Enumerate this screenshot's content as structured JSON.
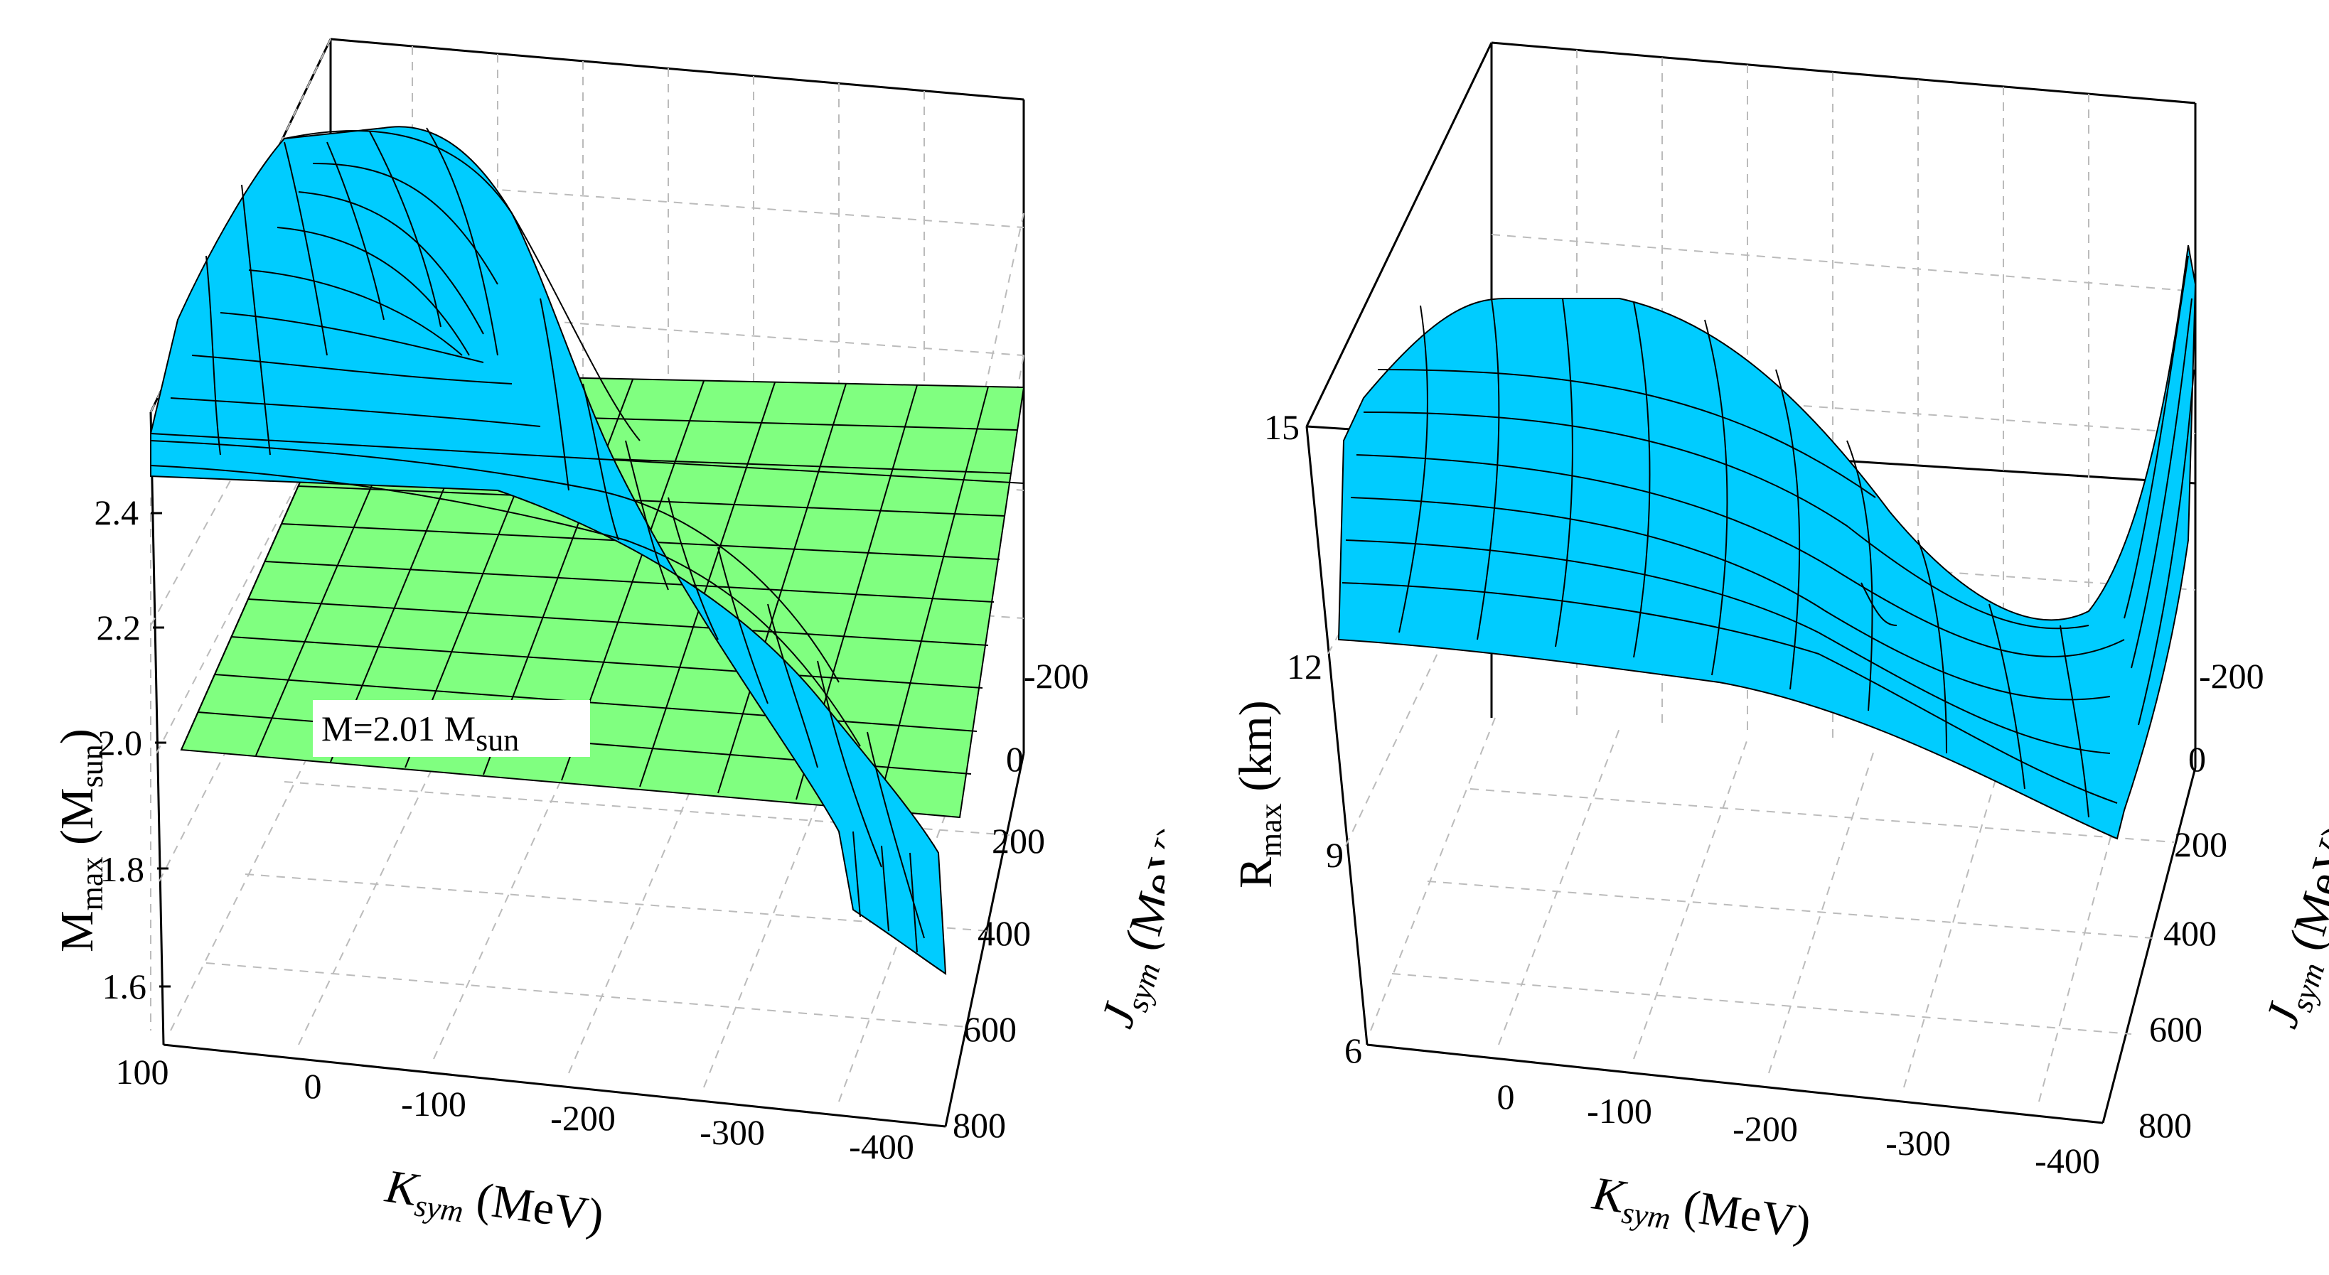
{
  "chart_data": [
    {
      "type": "surface",
      "title": "",
      "zlabel": {
        "main": "M",
        "sub": "max",
        "unit_open": " (M",
        "unit_sub": "sun",
        "unit_close": ")"
      },
      "xlabel": {
        "main": "K",
        "sub": "sym",
        "rest": " (MeV)"
      },
      "ylabel": {
        "main": "J",
        "sub": "sym",
        "rest": " (MeV)"
      },
      "z_ticks": [
        "2.4",
        "2.2",
        "2.0",
        "1.8",
        "1.6"
      ],
      "x_ticks": [
        "100",
        "0",
        "-100",
        "-200",
        "-300",
        "-400"
      ],
      "y_ticks": [
        "-200",
        "0",
        "200",
        "400",
        "600",
        "800"
      ],
      "xlim": [
        100,
        -400
      ],
      "ylim": [
        -200,
        800
      ],
      "zlim": [
        1.5,
        2.5
      ],
      "plane": {
        "value": 2.01,
        "color": "#80ff80",
        "label": {
          "main": "M=2.01 M",
          "sub": "sun"
        }
      },
      "surface_color": "#00ccff",
      "grid": true
    },
    {
      "type": "surface",
      "title": "",
      "zlabel": {
        "main": "R",
        "sub": "max",
        "rest": " (km)"
      },
      "xlabel": {
        "main": "K",
        "sub": "sym",
        "rest": " (MeV)"
      },
      "ylabel": {
        "main": "J",
        "sub": "sym",
        "rest": " (MeV)"
      },
      "z_ticks": [
        "15",
        "12",
        "9",
        "6"
      ],
      "x_ticks": [
        "0",
        "-100",
        "-200",
        "-300",
        "-400"
      ],
      "y_ticks": [
        "-200",
        "0",
        "200",
        "400",
        "600",
        "800"
      ],
      "xlim": [
        100,
        -400
      ],
      "ylim": [
        -200,
        800
      ],
      "zlim": [
        6,
        15
      ],
      "surface_color": "#00ccff",
      "grid": true
    }
  ]
}
